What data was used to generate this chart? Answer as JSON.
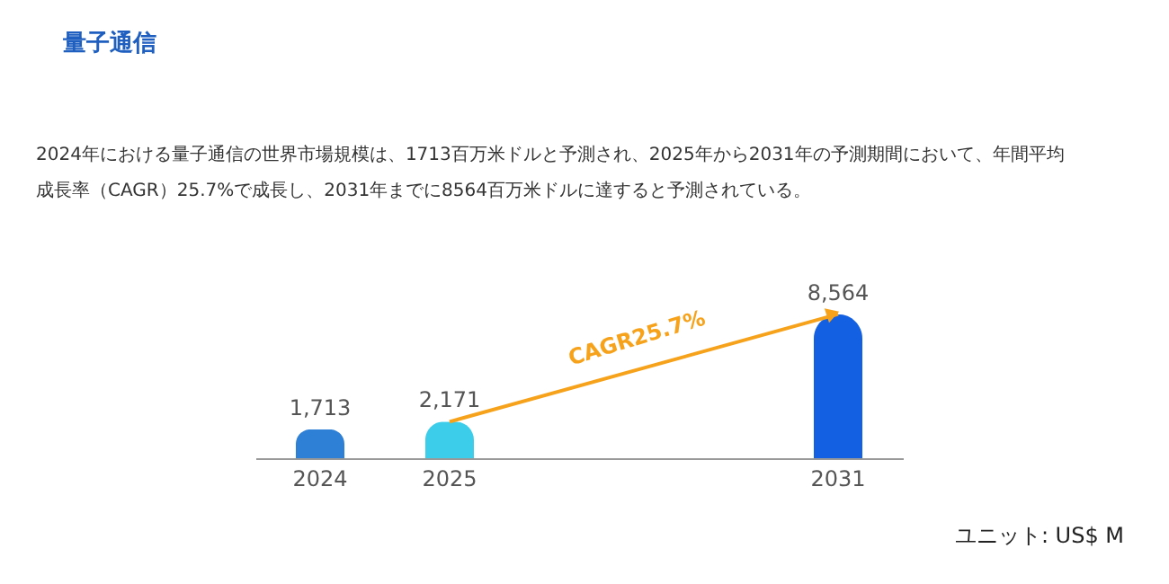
{
  "chart_data": {
    "type": "bar",
    "title": "量子通信",
    "subtitle": "2024年における量子通信の世界市場規模は、1713百万米ドルと予測され、2025年から2031年の予測期間において、年間平均成長率（CAGR）25.7%で成長し、2031年までに8564百万米ドルに達すると予測されている。",
    "categories": [
      "2024",
      "2025",
      null,
      null,
      "2031"
    ],
    "values": [
      1713,
      2171,
      null,
      null,
      8564
    ],
    "colors": [
      "#2e7fd6",
      "#3ccdeb",
      null,
      null,
      "#1360e2"
    ],
    "value_labels": [
      "1,713",
      "2,171",
      null,
      null,
      "8,564"
    ],
    "annotations": [
      "CAGR25.7%",
      "ユニット: US$ M"
    ],
    "grid": false
  }
}
